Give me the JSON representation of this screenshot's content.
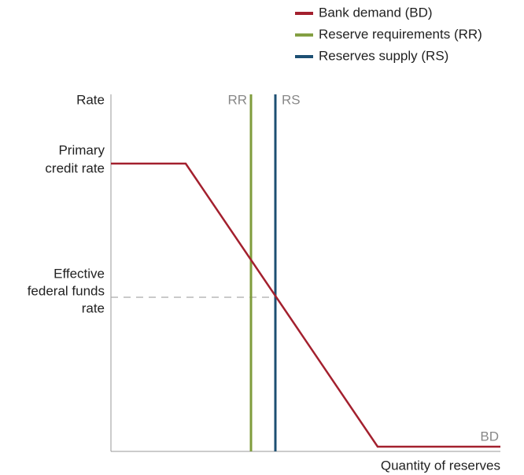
{
  "legend": [
    {
      "label": "Bank demand (BD)",
      "color": "#a3202e"
    },
    {
      "label": "Reserve requirements (RR)",
      "color": "#7f9c3c"
    },
    {
      "label": "Reserves supply (RS)",
      "color": "#1d4f73"
    }
  ],
  "axes": {
    "y_label": "Rate",
    "x_label": "Quantity of reserves"
  },
  "y_labels": {
    "primary_credit_rate": [
      "Primary",
      "credit rate"
    ],
    "effective_federal_funds_rate": [
      "Effective",
      "federal funds",
      "rate"
    ]
  },
  "curve_labels": {
    "rr": "RR",
    "rs": "RS",
    "bd": "BD"
  }
}
